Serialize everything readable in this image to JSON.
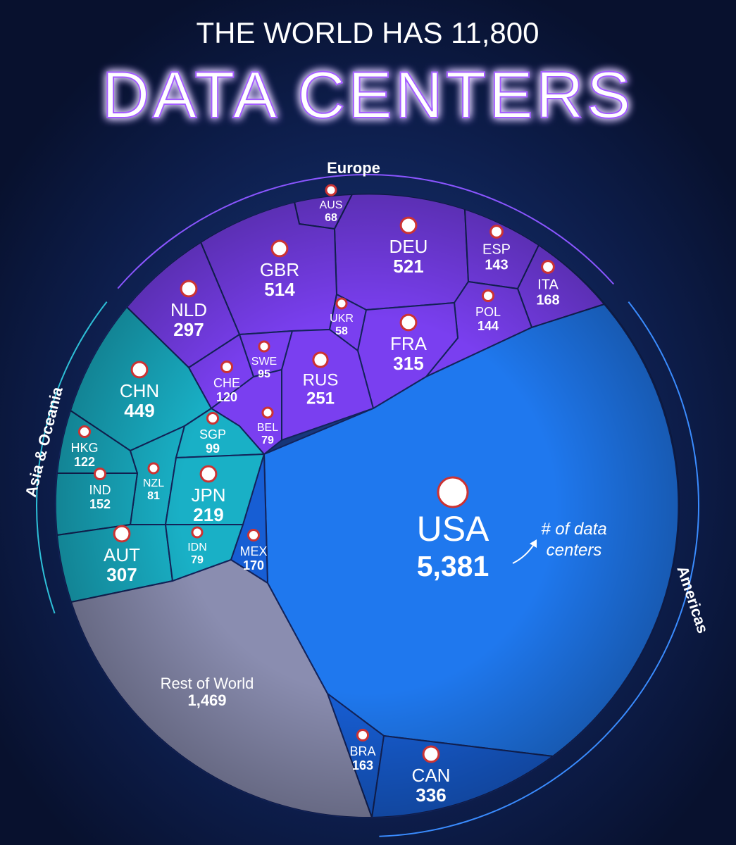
{
  "chart_data": {
    "type": "voronoi-treemap",
    "title": "THE WORLD HAS 11,800",
    "subtitle": "DATA CENTERS",
    "annotation": "# of data centers",
    "regions": [
      {
        "name": "Europe",
        "color": "#7a3ff0",
        "cells": [
          {
            "label": "AUS",
            "value": 68
          },
          {
            "label": "DEU",
            "value": 521
          },
          {
            "label": "ESP",
            "value": 143
          },
          {
            "label": "GBR",
            "value": 514
          },
          {
            "label": "ITA",
            "value": 168
          },
          {
            "label": "NLD",
            "value": 297
          },
          {
            "label": "UKR",
            "value": 58
          },
          {
            "label": "POL",
            "value": 144
          },
          {
            "label": "FRA",
            "value": 315
          },
          {
            "label": "SWE",
            "value": 95
          },
          {
            "label": "CHE",
            "value": 120
          },
          {
            "label": "RUS",
            "value": 251
          },
          {
            "label": "BEL",
            "value": 79
          }
        ]
      },
      {
        "name": "Asia & Oceania",
        "color": "#19b0c6",
        "cells": [
          {
            "label": "CHN",
            "value": 449
          },
          {
            "label": "HKG",
            "value": 122
          },
          {
            "label": "NZL",
            "value": 81
          },
          {
            "label": "IND",
            "value": 152
          },
          {
            "label": "SGP",
            "value": 99
          },
          {
            "label": "JPN",
            "value": 219
          },
          {
            "label": "AUT",
            "value": 307
          },
          {
            "label": "IDN",
            "value": 79
          }
        ]
      },
      {
        "name": "Americas",
        "color": "#1f78ee",
        "cells": [
          {
            "label": "USA",
            "value": 5381,
            "value_label": "5,381"
          },
          {
            "label": "MEX",
            "value": 170
          },
          {
            "label": "BRA",
            "value": 163
          },
          {
            "label": "CAN",
            "value": 336
          }
        ]
      }
    ],
    "other": {
      "label": "Rest of World",
      "value": 1469,
      "value_label": "1,469",
      "color": "#8a8db0"
    }
  }
}
